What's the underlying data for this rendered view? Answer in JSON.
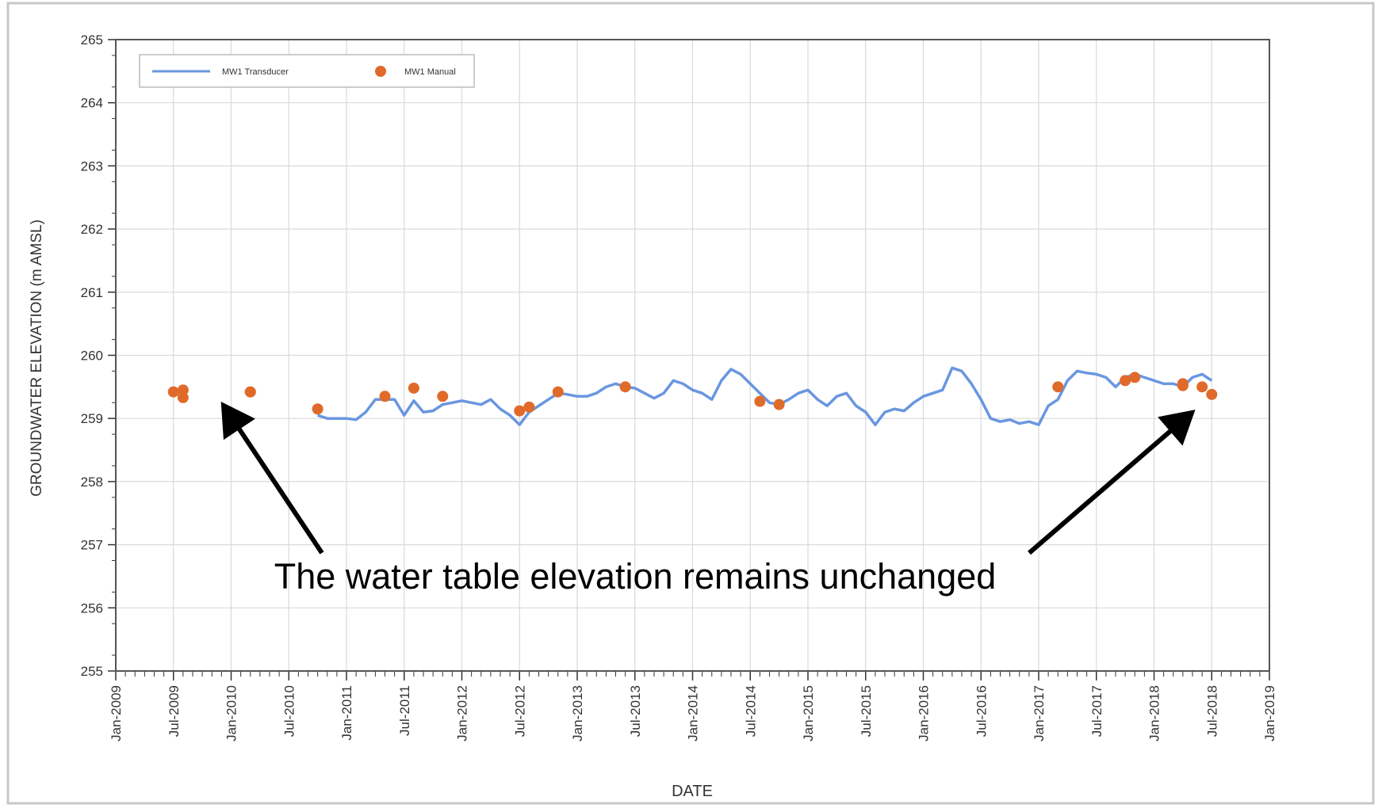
{
  "chart_data": {
    "type": "line",
    "y_label": "GROUNDWATER ELEVATION (m AMSL)",
    "x_label": "DATE",
    "annotation": "The water table elevation remains unchanged",
    "xlim": [
      "2009-01",
      "2019-01"
    ],
    "xticks": [
      {
        "value": "2009-01",
        "label": "Jan-2009"
      },
      {
        "value": "2009-07",
        "label": "Jul-2009"
      },
      {
        "value": "2010-01",
        "label": "Jan-2010"
      },
      {
        "value": "2010-07",
        "label": "Jul-2010"
      },
      {
        "value": "2011-01",
        "label": "Jan-2011"
      },
      {
        "value": "2011-07",
        "label": "Jul-2011"
      },
      {
        "value": "2012-01",
        "label": "Jan-2012"
      },
      {
        "value": "2012-07",
        "label": "Jul-2012"
      },
      {
        "value": "2013-01",
        "label": "Jan-2013"
      },
      {
        "value": "2013-07",
        "label": "Jul-2013"
      },
      {
        "value": "2014-01",
        "label": "Jan-2014"
      },
      {
        "value": "2014-07",
        "label": "Jul-2014"
      },
      {
        "value": "2015-01",
        "label": "Jan-2015"
      },
      {
        "value": "2015-07",
        "label": "Jul-2015"
      },
      {
        "value": "2016-01",
        "label": "Jan-2016"
      },
      {
        "value": "2016-07",
        "label": "Jul-2016"
      },
      {
        "value": "2017-01",
        "label": "Jan-2017"
      },
      {
        "value": "2017-07",
        "label": "Jul-2017"
      },
      {
        "value": "2018-01",
        "label": "Jan-2018"
      },
      {
        "value": "2018-07",
        "label": "Jul-2018"
      },
      {
        "value": "2019-01",
        "label": "Jan-2019"
      }
    ],
    "ylim": [
      255,
      265
    ],
    "yticks": [
      255,
      256,
      257,
      258,
      259,
      260,
      261,
      262,
      263,
      264,
      265
    ],
    "grid": true,
    "legend": "upper left",
    "series": [
      {
        "name": "MW1 Transducer",
        "type": "line",
        "color": "#6a96e0",
        "x": [
          "2010-10",
          "2010-11",
          "2010-12",
          "2011-01",
          "2011-02",
          "2011-03",
          "2011-04",
          "2011-05",
          "2011-06",
          "2011-07",
          "2011-08",
          "2011-09",
          "2011-10",
          "2011-11",
          "2011-12",
          "2012-01",
          "2012-02",
          "2012-03",
          "2012-04",
          "2012-05",
          "2012-06",
          "2012-07",
          "2012-08",
          "2012-09",
          "2012-10",
          "2012-11",
          "2012-12",
          "2013-01",
          "2013-02",
          "2013-03",
          "2013-04",
          "2013-05",
          "2013-06",
          "2013-07",
          "2013-08",
          "2013-09",
          "2013-10",
          "2013-11",
          "2013-12",
          "2014-01",
          "2014-02",
          "2014-03",
          "2014-04",
          "2014-05",
          "2014-06",
          "2014-07",
          "2014-08",
          "2014-09",
          "2014-10",
          "2014-11",
          "2014-12",
          "2015-01",
          "2015-02",
          "2015-03",
          "2015-04",
          "2015-05",
          "2015-06",
          "2015-07",
          "2015-08",
          "2015-09",
          "2015-10",
          "2015-11",
          "2015-12",
          "2016-01",
          "2016-02",
          "2016-03",
          "2016-04",
          "2016-05",
          "2016-06",
          "2016-07",
          "2016-08",
          "2016-09",
          "2016-10",
          "2016-11",
          "2016-12",
          "2017-01",
          "2017-02",
          "2017-03",
          "2017-04",
          "2017-05",
          "2017-06",
          "2017-07",
          "2017-08",
          "2017-09",
          "2017-10",
          "2017-11",
          "2017-12",
          "2018-01",
          "2018-02",
          "2018-03",
          "2018-04",
          "2018-05",
          "2018-06",
          "2018-07"
        ],
        "values": [
          259.05,
          259.0,
          259.0,
          259.0,
          258.98,
          259.1,
          259.3,
          259.3,
          259.3,
          259.05,
          259.28,
          259.1,
          259.12,
          259.22,
          259.25,
          259.28,
          259.25,
          259.22,
          259.3,
          259.15,
          259.05,
          258.9,
          259.1,
          259.2,
          259.3,
          259.4,
          259.38,
          259.35,
          259.35,
          259.4,
          259.5,
          259.55,
          259.5,
          259.48,
          259.4,
          259.32,
          259.4,
          259.6,
          259.55,
          259.45,
          259.4,
          259.3,
          259.6,
          259.78,
          259.7,
          259.55,
          259.4,
          259.25,
          259.22,
          259.3,
          259.4,
          259.45,
          259.3,
          259.2,
          259.35,
          259.4,
          259.2,
          259.1,
          258.9,
          259.1,
          259.15,
          259.12,
          259.25,
          259.35,
          259.4,
          259.45,
          259.8,
          259.75,
          259.55,
          259.3,
          259.0,
          258.95,
          258.98,
          258.92,
          258.95,
          258.9,
          259.2,
          259.3,
          259.6,
          259.75,
          259.72,
          259.7,
          259.65,
          259.5,
          259.65,
          259.7,
          259.65,
          259.6,
          259.55,
          259.55,
          259.5,
          259.65,
          259.7,
          259.6
        ]
      },
      {
        "name": "MW1 Manual",
        "type": "scatter",
        "color": "#e06a2a",
        "x": [
          "2009-07",
          "2009-08",
          "2009-08",
          "2010-03",
          "2010-03",
          "2010-10",
          "2011-05",
          "2011-08",
          "2011-11",
          "2012-07",
          "2012-08",
          "2012-11",
          "2013-06",
          "2014-08",
          "2014-10",
          "2017-03",
          "2017-10",
          "2017-11",
          "2018-04",
          "2018-04",
          "2018-06",
          "2018-07"
        ],
        "values": [
          259.42,
          259.33,
          259.45,
          259.42,
          259.42,
          259.15,
          259.35,
          259.48,
          259.35,
          259.12,
          259.18,
          259.42,
          259.5,
          259.27,
          259.22,
          259.5,
          259.6,
          259.65,
          259.52,
          259.55,
          259.5,
          259.38
        ]
      }
    ]
  }
}
